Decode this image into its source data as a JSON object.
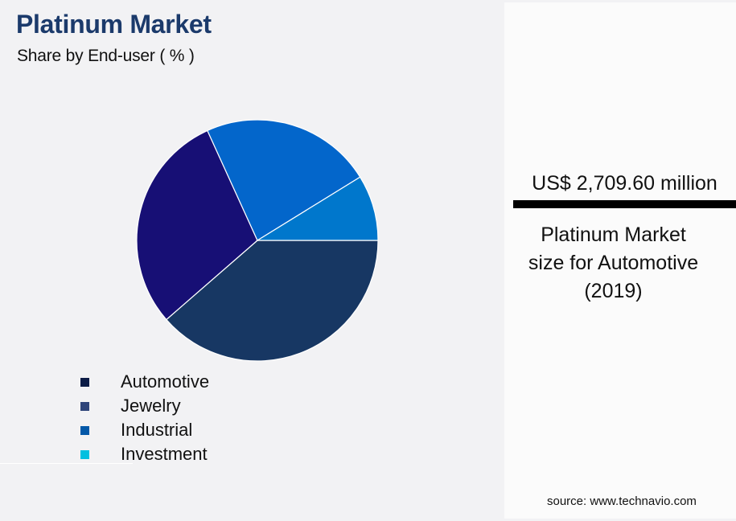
{
  "header": {
    "title": "Platinum Market",
    "subtitle": "Share by End-user ( % )"
  },
  "legend": {
    "items": [
      {
        "label": "Automotive",
        "color": "#0c1c46"
      },
      {
        "label": "Jewelry",
        "color": "#2e4479"
      },
      {
        "label": "Industrial",
        "color": "#0358a8"
      },
      {
        "label": "Investment",
        "color": "#00c0e0"
      }
    ]
  },
  "kpi": {
    "value": "US$ 2,709.60 million",
    "caption_line1": "Platinum Market",
    "caption_line2": "size for Automotive",
    "caption_line3": "(2019)"
  },
  "footer": {
    "source": "source: www.technavio.com"
  },
  "chart_data": {
    "type": "pie",
    "title": "Platinum Market",
    "subtitle": "Share by End-user ( % )",
    "categories": [
      "Automotive",
      "Jewelry",
      "Industrial",
      "Investment"
    ],
    "values": [
      38.6,
      29.6,
      23.0,
      8.8
    ],
    "slice_colors": [
      "#173763",
      "#170f75",
      "#0366cb",
      "#0077cc"
    ],
    "start_angle_deg": 0,
    "direction": "clockwise",
    "legend_position": "bottom-left",
    "annotations": [
      "US$ 2,709.60 million",
      "Platinum Market size for Automotive (2019)"
    ]
  }
}
